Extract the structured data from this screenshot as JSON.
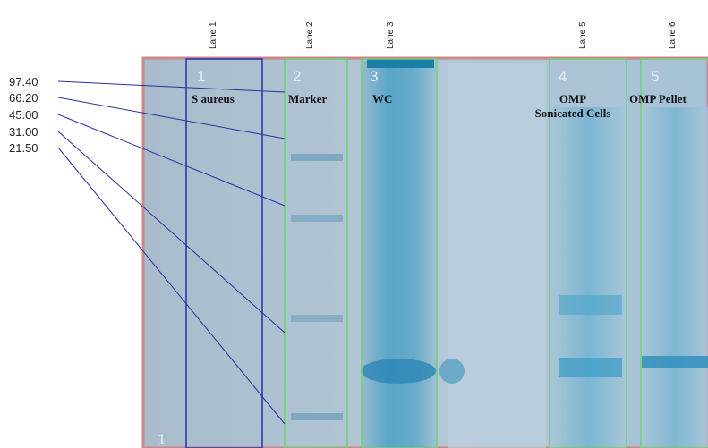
{
  "lane_headers": [
    "Lane 1",
    "Lane 2",
    "Lane 3",
    "Lane 5",
    "Lane 6"
  ],
  "marker_weights": [
    "97.40",
    "66.20",
    "45.00",
    "31.00",
    "21.50"
  ],
  "lanes": [
    {
      "number": "1",
      "name": [
        "S aureus"
      ]
    },
    {
      "number": "2",
      "name": [
        "Marker"
      ]
    },
    {
      "number": "3",
      "name": [
        "WC"
      ]
    },
    {
      "number": "4",
      "name": [
        "OMP",
        "Sonicated Cells"
      ]
    },
    {
      "number": "5",
      "name": [
        "OMP Pellet"
      ]
    }
  ],
  "corner_number": "1"
}
